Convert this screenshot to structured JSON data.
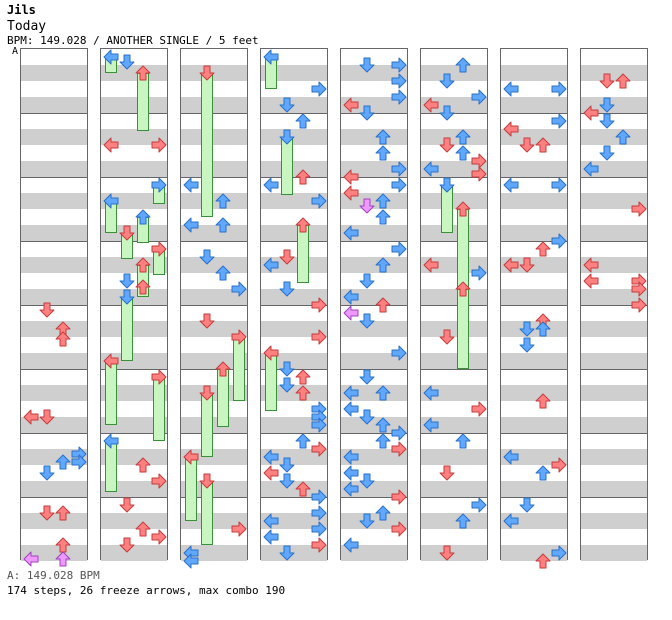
{
  "header": {
    "artist": "Jils",
    "title": "Today",
    "info": "BPM: 149.028 / ANOTHER SINGLE / 5 feet",
    "bpm_marker": "A"
  },
  "footer": {
    "bpm_legend": "A: 149.028 BPM",
    "stats": "174 steps, 26 freeze arrows, max combo 190"
  },
  "colors": {
    "quarter_note": "#ff8080",
    "eighth_note": "#60a8ff",
    "sixteenth_note": "#ffffff",
    "freeze_body": "#c8f5c0",
    "freeze_border": "#3a8f3a",
    "stripe": "#cfcfcf",
    "special_note": "#ee99ff"
  },
  "icons": {
    "arrow_left": "arrow-left-icon",
    "arrow_down": "arrow-down-icon",
    "arrow_up": "arrow-up-icon",
    "arrow_right": "arrow-right-icon"
  },
  "chart_data": {
    "type": "step-chart",
    "columns": 8,
    "measures_per_column": 8,
    "lanes": [
      "left",
      "down",
      "up",
      "right"
    ],
    "notes": [
      {
        "c": 0,
        "b": 15.8,
        "l": 1,
        "t": "q"
      },
      {
        "c": 0,
        "b": 17.0,
        "l": 2,
        "t": "q"
      },
      {
        "c": 0,
        "b": 17.6,
        "l": 2,
        "t": "q"
      },
      {
        "c": 0,
        "b": 22.5,
        "l": 0,
        "t": "q"
      },
      {
        "c": 0,
        "b": 22.5,
        "l": 1,
        "t": "q"
      },
      {
        "c": 0,
        "b": 24.8,
        "l": 3,
        "t": "e"
      },
      {
        "c": 0,
        "b": 25.3,
        "l": 2,
        "t": "e"
      },
      {
        "c": 0,
        "b": 25.3,
        "l": 3,
        "t": "e"
      },
      {
        "c": 0,
        "b": 26.0,
        "l": 1,
        "t": "e"
      },
      {
        "c": 0,
        "b": 28.5,
        "l": 1,
        "t": "q"
      },
      {
        "c": 0,
        "b": 28.5,
        "l": 2,
        "t": "q"
      },
      {
        "c": 0,
        "b": 30.5,
        "l": 2,
        "t": "q"
      },
      {
        "c": 0,
        "b": 31.4,
        "l": 0,
        "t": "s"
      },
      {
        "c": 0,
        "b": 31.4,
        "l": 2,
        "t": "s"
      },
      {
        "c": 1,
        "b": 0.0,
        "l": 0,
        "t": "e",
        "f": 0.5
      },
      {
        "c": 1,
        "b": 0.3,
        "l": 1,
        "t": "e"
      },
      {
        "c": 1,
        "b": 1.0,
        "l": 2,
        "t": "q",
        "f": 1.8
      },
      {
        "c": 1,
        "b": 5.5,
        "l": 0,
        "t": "q"
      },
      {
        "c": 1,
        "b": 5.5,
        "l": 3,
        "t": "q"
      },
      {
        "c": 1,
        "b": 8.0,
        "l": 3,
        "t": "e",
        "f": 0.6
      },
      {
        "c": 1,
        "b": 9.0,
        "l": 0,
        "t": "e",
        "f": 1.0
      },
      {
        "c": 1,
        "b": 10.0,
        "l": 2,
        "t": "e",
        "f": 0.8
      },
      {
        "c": 1,
        "b": 11.0,
        "l": 1,
        "t": "q",
        "f": 0.8
      },
      {
        "c": 1,
        "b": 12.0,
        "l": 3,
        "t": "q",
        "f": 0.8
      },
      {
        "c": 1,
        "b": 13.0,
        "l": 2,
        "t": "q",
        "f": 1.0
      },
      {
        "c": 1,
        "b": 14.0,
        "l": 1,
        "t": "e"
      },
      {
        "c": 1,
        "b": 14.4,
        "l": 2,
        "t": "q"
      },
      {
        "c": 1,
        "b": 15.0,
        "l": 1,
        "t": "e",
        "f": 2.0
      },
      {
        "c": 1,
        "b": 19.0,
        "l": 0,
        "t": "q",
        "f": 2.0
      },
      {
        "c": 1,
        "b": 20.0,
        "l": 3,
        "t": "q",
        "f": 2.0
      },
      {
        "c": 1,
        "b": 24.0,
        "l": 0,
        "t": "e",
        "f": 1.6
      },
      {
        "c": 1,
        "b": 25.5,
        "l": 2,
        "t": "q"
      },
      {
        "c": 1,
        "b": 26.5,
        "l": 3,
        "t": "q"
      },
      {
        "c": 1,
        "b": 28.0,
        "l": 1,
        "t": "q"
      },
      {
        "c": 1,
        "b": 29.5,
        "l": 2,
        "t": "q"
      },
      {
        "c": 1,
        "b": 30.0,
        "l": 3,
        "t": "q"
      },
      {
        "c": 1,
        "b": 30.5,
        "l": 1,
        "t": "q"
      },
      {
        "c": 2,
        "b": 1.0,
        "l": 1,
        "t": "q",
        "f": 4.5
      },
      {
        "c": 2,
        "b": 8.0,
        "l": 0,
        "t": "e"
      },
      {
        "c": 2,
        "b": 9.0,
        "l": 2,
        "t": "e"
      },
      {
        "c": 2,
        "b": 10.5,
        "l": 0,
        "t": "e"
      },
      {
        "c": 2,
        "b": 10.5,
        "l": 2,
        "t": "e"
      },
      {
        "c": 2,
        "b": 12.5,
        "l": 1,
        "t": "e"
      },
      {
        "c": 2,
        "b": 13.5,
        "l": 2,
        "t": "e"
      },
      {
        "c": 2,
        "b": 14.5,
        "l": 3,
        "t": "e"
      },
      {
        "c": 2,
        "b": 16.5,
        "l": 1,
        "t": "q"
      },
      {
        "c": 2,
        "b": 17.5,
        "l": 3,
        "t": "q",
        "f": 2.0
      },
      {
        "c": 2,
        "b": 19.5,
        "l": 2,
        "t": "q",
        "f": 1.8
      },
      {
        "c": 2,
        "b": 21.0,
        "l": 1,
        "t": "q",
        "f": 2.0
      },
      {
        "c": 2,
        "b": 25.0,
        "l": 0,
        "t": "q",
        "f": 2.0
      },
      {
        "c": 2,
        "b": 26.5,
        "l": 1,
        "t": "q",
        "f": 2.0
      },
      {
        "c": 2,
        "b": 29.5,
        "l": 3,
        "t": "q"
      },
      {
        "c": 2,
        "b": 31.0,
        "l": 0,
        "t": "e"
      },
      {
        "c": 2,
        "b": 31.5,
        "l": 0,
        "t": "e"
      },
      {
        "c": 3,
        "b": 0.0,
        "l": 0,
        "t": "e",
        "f": 1.0
      },
      {
        "c": 3,
        "b": 2.0,
        "l": 3,
        "t": "e"
      },
      {
        "c": 3,
        "b": 3.0,
        "l": 1,
        "t": "e"
      },
      {
        "c": 3,
        "b": 4.0,
        "l": 2,
        "t": "e"
      },
      {
        "c": 3,
        "b": 5.0,
        "l": 1,
        "t": "e",
        "f": 1.8
      },
      {
        "c": 3,
        "b": 7.5,
        "l": 2,
        "t": "q"
      },
      {
        "c": 3,
        "b": 8.0,
        "l": 0,
        "t": "e"
      },
      {
        "c": 3,
        "b": 9.0,
        "l": 3,
        "t": "e"
      },
      {
        "c": 3,
        "b": 10.5,
        "l": 2,
        "t": "q",
        "f": 1.8
      },
      {
        "c": 3,
        "b": 12.5,
        "l": 1,
        "t": "q"
      },
      {
        "c": 3,
        "b": 13.0,
        "l": 0,
        "t": "e"
      },
      {
        "c": 3,
        "b": 14.5,
        "l": 1,
        "t": "e"
      },
      {
        "c": 3,
        "b": 15.5,
        "l": 3,
        "t": "q"
      },
      {
        "c": 3,
        "b": 17.5,
        "l": 3,
        "t": "q"
      },
      {
        "c": 3,
        "b": 18.5,
        "l": 0,
        "t": "q",
        "f": 1.8
      },
      {
        "c": 3,
        "b": 19.5,
        "l": 1,
        "t": "e"
      },
      {
        "c": 3,
        "b": 20.0,
        "l": 2,
        "t": "q"
      },
      {
        "c": 3,
        "b": 20.5,
        "l": 1,
        "t": "e"
      },
      {
        "c": 3,
        "b": 21.0,
        "l": 2,
        "t": "q"
      },
      {
        "c": 3,
        "b": 22.0,
        "l": 3,
        "t": "e"
      },
      {
        "c": 3,
        "b": 22.5,
        "l": 3,
        "t": "e"
      },
      {
        "c": 3,
        "b": 23.0,
        "l": 3,
        "t": "e"
      },
      {
        "c": 3,
        "b": 24.0,
        "l": 2,
        "t": "e"
      },
      {
        "c": 3,
        "b": 24.5,
        "l": 3,
        "t": "q"
      },
      {
        "c": 3,
        "b": 25.0,
        "l": 0,
        "t": "e"
      },
      {
        "c": 3,
        "b": 25.5,
        "l": 1,
        "t": "e"
      },
      {
        "c": 3,
        "b": 26.0,
        "l": 0,
        "t": "q"
      },
      {
        "c": 3,
        "b": 26.5,
        "l": 1,
        "t": "e"
      },
      {
        "c": 3,
        "b": 27.0,
        "l": 2,
        "t": "q"
      },
      {
        "c": 3,
        "b": 27.5,
        "l": 3,
        "t": "e"
      },
      {
        "c": 3,
        "b": 28.5,
        "l": 3,
        "t": "e"
      },
      {
        "c": 3,
        "b": 29.0,
        "l": 0,
        "t": "e"
      },
      {
        "c": 3,
        "b": 29.5,
        "l": 3,
        "t": "e"
      },
      {
        "c": 3,
        "b": 30.0,
        "l": 0,
        "t": "e"
      },
      {
        "c": 3,
        "b": 30.5,
        "l": 3,
        "t": "q"
      },
      {
        "c": 3,
        "b": 31.0,
        "l": 1,
        "t": "e"
      },
      {
        "c": 4,
        "b": 0.5,
        "l": 1,
        "t": "e"
      },
      {
        "c": 4,
        "b": 0.5,
        "l": 3,
        "t": "e"
      },
      {
        "c": 4,
        "b": 1.5,
        "l": 3,
        "t": "e"
      },
      {
        "c": 4,
        "b": 2.5,
        "l": 3,
        "t": "e"
      },
      {
        "c": 4,
        "b": 3.0,
        "l": 0,
        "t": "q"
      },
      {
        "c": 4,
        "b": 3.5,
        "l": 1,
        "t": "e"
      },
      {
        "c": 4,
        "b": 5.0,
        "l": 2,
        "t": "e"
      },
      {
        "c": 4,
        "b": 6.0,
        "l": 2,
        "t": "e"
      },
      {
        "c": 4,
        "b": 7.0,
        "l": 3,
        "t": "e"
      },
      {
        "c": 4,
        "b": 7.5,
        "l": 0,
        "t": "q"
      },
      {
        "c": 4,
        "b": 8.0,
        "l": 3,
        "t": "e"
      },
      {
        "c": 4,
        "b": 8.5,
        "l": 0,
        "t": "q"
      },
      {
        "c": 4,
        "b": 9.0,
        "l": 2,
        "t": "e"
      },
      {
        "c": 4,
        "b": 9.3,
        "l": 1,
        "t": "s"
      },
      {
        "c": 4,
        "b": 10.0,
        "l": 2,
        "t": "e"
      },
      {
        "c": 4,
        "b": 11.0,
        "l": 0,
        "t": "e"
      },
      {
        "c": 4,
        "b": 12.0,
        "l": 3,
        "t": "e"
      },
      {
        "c": 4,
        "b": 13.0,
        "l": 2,
        "t": "e"
      },
      {
        "c": 4,
        "b": 14.0,
        "l": 1,
        "t": "e"
      },
      {
        "c": 4,
        "b": 15.0,
        "l": 0,
        "t": "e"
      },
      {
        "c": 4,
        "b": 15.5,
        "l": 2,
        "t": "q"
      },
      {
        "c": 4,
        "b": 16.0,
        "l": 0,
        "t": "s"
      },
      {
        "c": 4,
        "b": 16.5,
        "l": 1,
        "t": "e"
      },
      {
        "c": 4,
        "b": 18.5,
        "l": 3,
        "t": "e"
      },
      {
        "c": 4,
        "b": 20.0,
        "l": 1,
        "t": "e"
      },
      {
        "c": 4,
        "b": 21.0,
        "l": 0,
        "t": "e"
      },
      {
        "c": 4,
        "b": 21.0,
        "l": 2,
        "t": "e"
      },
      {
        "c": 4,
        "b": 22.0,
        "l": 0,
        "t": "e"
      },
      {
        "c": 4,
        "b": 22.5,
        "l": 1,
        "t": "e"
      },
      {
        "c": 4,
        "b": 23.0,
        "l": 2,
        "t": "e"
      },
      {
        "c": 4,
        "b": 23.5,
        "l": 3,
        "t": "e"
      },
      {
        "c": 4,
        "b": 24.0,
        "l": 2,
        "t": "e"
      },
      {
        "c": 4,
        "b": 24.5,
        "l": 3,
        "t": "q"
      },
      {
        "c": 4,
        "b": 25.0,
        "l": 0,
        "t": "e"
      },
      {
        "c": 4,
        "b": 26.0,
        "l": 0,
        "t": "e"
      },
      {
        "c": 4,
        "b": 26.5,
        "l": 1,
        "t": "e"
      },
      {
        "c": 4,
        "b": 27.0,
        "l": 0,
        "t": "e"
      },
      {
        "c": 4,
        "b": 27.5,
        "l": 3,
        "t": "q"
      },
      {
        "c": 4,
        "b": 28.5,
        "l": 2,
        "t": "e"
      },
      {
        "c": 4,
        "b": 29.0,
        "l": 1,
        "t": "e"
      },
      {
        "c": 4,
        "b": 29.5,
        "l": 3,
        "t": "q"
      },
      {
        "c": 4,
        "b": 30.5,
        "l": 0,
        "t": "e"
      },
      {
        "c": 5,
        "b": 0.5,
        "l": 2,
        "t": "e"
      },
      {
        "c": 5,
        "b": 1.5,
        "l": 1,
        "t": "e"
      },
      {
        "c": 5,
        "b": 2.5,
        "l": 3,
        "t": "e"
      },
      {
        "c": 5,
        "b": 3.0,
        "l": 0,
        "t": "q"
      },
      {
        "c": 5,
        "b": 3.5,
        "l": 1,
        "t": "e"
      },
      {
        "c": 5,
        "b": 5.0,
        "l": 2,
        "t": "e"
      },
      {
        "c": 5,
        "b": 5.5,
        "l": 1,
        "t": "q"
      },
      {
        "c": 5,
        "b": 6.0,
        "l": 2,
        "t": "e"
      },
      {
        "c": 5,
        "b": 6.5,
        "l": 3,
        "t": "q"
      },
      {
        "c": 5,
        "b": 7.0,
        "l": 0,
        "t": "e"
      },
      {
        "c": 5,
        "b": 7.3,
        "l": 3,
        "t": "q"
      },
      {
        "c": 5,
        "b": 8.0,
        "l": 1,
        "t": "e",
        "f": 1.5
      },
      {
        "c": 5,
        "b": 9.5,
        "l": 2,
        "t": "q",
        "f": 2.5
      },
      {
        "c": 5,
        "b": 13.0,
        "l": 0,
        "t": "q"
      },
      {
        "c": 5,
        "b": 13.5,
        "l": 3,
        "t": "e"
      },
      {
        "c": 5,
        "b": 14.5,
        "l": 2,
        "t": "q",
        "f": 2.5
      },
      {
        "c": 5,
        "b": 17.5,
        "l": 1,
        "t": "q"
      },
      {
        "c": 5,
        "b": 21.0,
        "l": 0,
        "t": "e"
      },
      {
        "c": 5,
        "b": 22.0,
        "l": 3,
        "t": "q"
      },
      {
        "c": 5,
        "b": 23.0,
        "l": 0,
        "t": "e"
      },
      {
        "c": 5,
        "b": 24.0,
        "l": 2,
        "t": "e"
      },
      {
        "c": 5,
        "b": 26.0,
        "l": 1,
        "t": "q"
      },
      {
        "c": 5,
        "b": 28.0,
        "l": 3,
        "t": "e"
      },
      {
        "c": 5,
        "b": 29.0,
        "l": 2,
        "t": "e"
      },
      {
        "c": 5,
        "b": 31.0,
        "l": 1,
        "t": "q"
      },
      {
        "c": 6,
        "b": 2.0,
        "l": 0,
        "t": "e"
      },
      {
        "c": 6,
        "b": 2.0,
        "l": 3,
        "t": "e"
      },
      {
        "c": 6,
        "b": 4.0,
        "l": 3,
        "t": "e"
      },
      {
        "c": 6,
        "b": 4.5,
        "l": 0,
        "t": "q"
      },
      {
        "c": 6,
        "b": 5.5,
        "l": 1,
        "t": "q"
      },
      {
        "c": 6,
        "b": 5.5,
        "l": 2,
        "t": "q"
      },
      {
        "c": 6,
        "b": 8.0,
        "l": 0,
        "t": "e"
      },
      {
        "c": 6,
        "b": 8.0,
        "l": 3,
        "t": "e"
      },
      {
        "c": 6,
        "b": 11.5,
        "l": 3,
        "t": "e"
      },
      {
        "c": 6,
        "b": 12.0,
        "l": 2,
        "t": "q"
      },
      {
        "c": 6,
        "b": 13.0,
        "l": 0,
        "t": "q"
      },
      {
        "c": 6,
        "b": 13.0,
        "l": 1,
        "t": "q"
      },
      {
        "c": 6,
        "b": 16.5,
        "l": 2,
        "t": "q"
      },
      {
        "c": 6,
        "b": 17.0,
        "l": 1,
        "t": "e"
      },
      {
        "c": 6,
        "b": 17.0,
        "l": 2,
        "t": "e"
      },
      {
        "c": 6,
        "b": 18.0,
        "l": 1,
        "t": "e"
      },
      {
        "c": 6,
        "b": 21.5,
        "l": 2,
        "t": "q"
      },
      {
        "c": 6,
        "b": 25.0,
        "l": 0,
        "t": "e"
      },
      {
        "c": 6,
        "b": 25.5,
        "l": 3,
        "t": "q"
      },
      {
        "c": 6,
        "b": 26.0,
        "l": 2,
        "t": "e"
      },
      {
        "c": 6,
        "b": 28.0,
        "l": 1,
        "t": "e"
      },
      {
        "c": 6,
        "b": 29.0,
        "l": 0,
        "t": "e"
      },
      {
        "c": 6,
        "b": 31.0,
        "l": 3,
        "t": "e"
      },
      {
        "c": 6,
        "b": 31.5,
        "l": 2,
        "t": "q"
      },
      {
        "c": 7,
        "b": 1.5,
        "l": 1,
        "t": "q"
      },
      {
        "c": 7,
        "b": 1.5,
        "l": 2,
        "t": "q"
      },
      {
        "c": 7,
        "b": 3.0,
        "l": 1,
        "t": "e"
      },
      {
        "c": 7,
        "b": 3.5,
        "l": 0,
        "t": "q"
      },
      {
        "c": 7,
        "b": 4.0,
        "l": 1,
        "t": "e"
      },
      {
        "c": 7,
        "b": 5.0,
        "l": 2,
        "t": "e"
      },
      {
        "c": 7,
        "b": 6.0,
        "l": 1,
        "t": "e"
      },
      {
        "c": 7,
        "b": 7.0,
        "l": 0,
        "t": "e"
      },
      {
        "c": 7,
        "b": 9.5,
        "l": 3,
        "t": "q"
      },
      {
        "c": 7,
        "b": 13.0,
        "l": 0,
        "t": "q"
      },
      {
        "c": 7,
        "b": 14.0,
        "l": 0,
        "t": "q"
      },
      {
        "c": 7,
        "b": 14.0,
        "l": 3,
        "t": "q"
      },
      {
        "c": 7,
        "b": 14.5,
        "l": 3,
        "t": "q"
      },
      {
        "c": 7,
        "b": 15.5,
        "l": 3,
        "t": "q"
      }
    ]
  }
}
